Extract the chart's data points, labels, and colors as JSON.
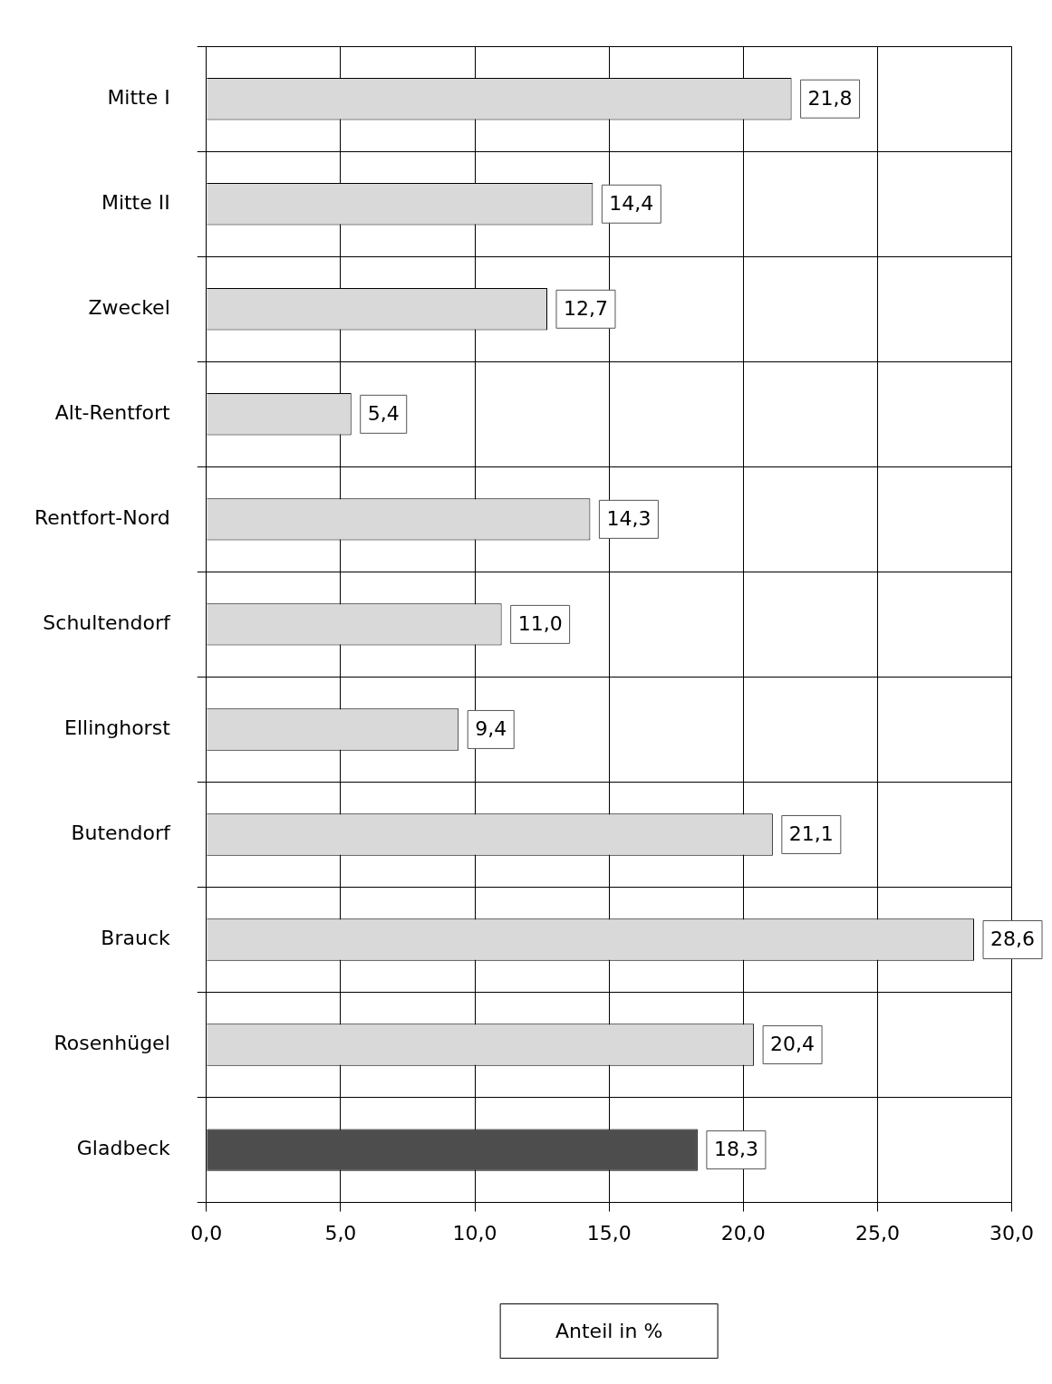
{
  "chart_data": {
    "type": "bar",
    "orientation": "horizontal",
    "xlabel": "Anteil in %",
    "categories": [
      "Mitte I",
      "Mitte II",
      "Zweckel",
      "Alt-Rentfort",
      "Rentfort-Nord",
      "Schultendorf",
      "Ellinghorst",
      "Butendorf",
      "Brauck",
      "Rosenhügel",
      "Gladbeck"
    ],
    "values": [
      21.8,
      14.4,
      12.7,
      5.4,
      14.3,
      11.0,
      9.4,
      21.1,
      28.6,
      20.4,
      18.3
    ],
    "colors": [
      "#d9d9d9",
      "#d9d9d9",
      "#d9d9d9",
      "#d9d9d9",
      "#d9d9d9",
      "#d9d9d9",
      "#d9d9d9",
      "#d9d9d9",
      "#d9d9d9",
      "#d9d9d9",
      "#4d4d4d"
    ],
    "value_labels": [
      "21,8",
      "14,4",
      "12,7",
      "5,4",
      "14,3",
      "11,0",
      "9,4",
      "21,1",
      "28,6",
      "20,4",
      "18,3"
    ],
    "xlim": [
      0,
      30
    ],
    "xticks": [
      {
        "value": 0,
        "label": "0,0"
      },
      {
        "value": 5,
        "label": "5,0"
      },
      {
        "value": 10,
        "label": "10,0"
      },
      {
        "value": 15,
        "label": "15,0"
      },
      {
        "value": 20,
        "label": "20,0"
      },
      {
        "value": 25,
        "label": "25,0"
      },
      {
        "value": 30,
        "label": "30,0"
      }
    ],
    "grid": true,
    "legend": false
  }
}
